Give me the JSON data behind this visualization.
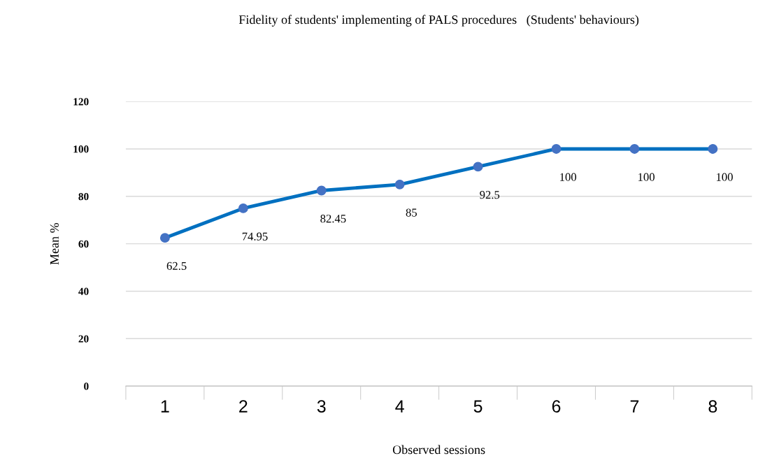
{
  "chart_data": {
    "type": "line",
    "title": "Fidelity of students' implementing of PALS procedures   (Students' behaviours)",
    "xlabel": "Observed sessions",
    "ylabel": "Mean %",
    "categories": [
      "1",
      "2",
      "3",
      "4",
      "5",
      "6",
      "7",
      "8"
    ],
    "series": [
      {
        "color": "#0070c0",
        "values": [
          62.5,
          74.95,
          82.45,
          85,
          92.5,
          100,
          100,
          100
        ]
      }
    ],
    "ylim": [
      0,
      120
    ],
    "yticks": [
      0,
      20,
      40,
      60,
      80,
      100,
      120
    ],
    "grid": "y",
    "marker": "circle",
    "line_style": "solid",
    "data_labels": true,
    "legend": false
  }
}
